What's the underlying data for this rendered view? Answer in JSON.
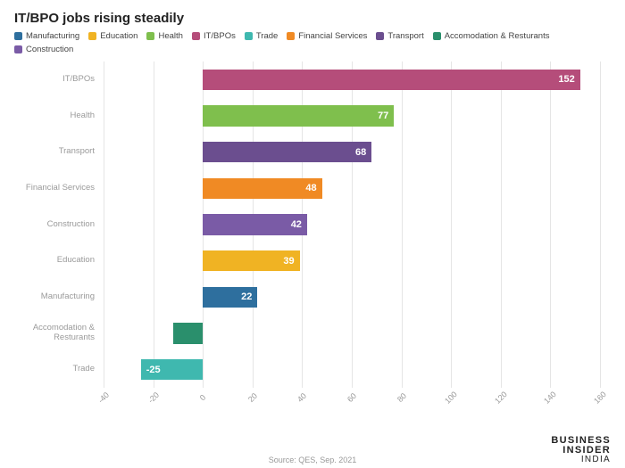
{
  "chart": {
    "type": "bar-horizontal",
    "title": "IT/BPO jobs rising steadily",
    "title_fontsize": 15,
    "title_color": "#222222",
    "background_color": "#ffffff",
    "grid_color": "#e5e5e5",
    "ylabel_fontsize": 9.5,
    "ylabel_color": "#9a9a9a",
    "value_label_fontsize": 11,
    "value_label_color": "#ffffff",
    "x_axis": {
      "min": -40,
      "max": 160,
      "tick_step": 20,
      "tick_fontsize": 9,
      "tick_color": "#999999",
      "tick_rotation_deg": -45,
      "ticks": [
        "-40",
        "-20",
        "0",
        "20",
        "40",
        "60",
        "80",
        "100",
        "120",
        "140",
        "160"
      ]
    },
    "legend": {
      "fontsize": 9.5,
      "text_color": "#444444",
      "items": [
        {
          "label": "Manufacturing",
          "color": "#2e6f9e"
        },
        {
          "label": "Education",
          "color": "#f0b323"
        },
        {
          "label": "Health",
          "color": "#7fbf4d"
        },
        {
          "label": "IT/BPOs",
          "color": "#b54d7a"
        },
        {
          "label": "Trade",
          "color": "#3fb8af"
        },
        {
          "label": "Financial Services",
          "color": "#f08a24"
        },
        {
          "label": "Transport",
          "color": "#6b4e8f"
        },
        {
          "label": "Accomodation & Resturants",
          "color": "#2a8f6c"
        },
        {
          "label": "Construction",
          "color": "#7a5ba6"
        }
      ]
    },
    "rows": [
      {
        "label": "IT/BPOs",
        "value": 152,
        "show_value": "152",
        "color": "#b54d7a"
      },
      {
        "label": "Health",
        "value": 77,
        "show_value": "77",
        "color": "#7fbf4d"
      },
      {
        "label": "Transport",
        "value": 68,
        "show_value": "68",
        "color": "#6b4e8f"
      },
      {
        "label": "Financial Services",
        "value": 48,
        "show_value": "48",
        "color": "#f08a24"
      },
      {
        "label": "Construction",
        "value": 42,
        "show_value": "42",
        "color": "#7a5ba6"
      },
      {
        "label": "Education",
        "value": 39,
        "show_value": "39",
        "color": "#f0b323"
      },
      {
        "label": "Manufacturing",
        "value": 22,
        "show_value": "22",
        "color": "#2e6f9e"
      },
      {
        "label": "Accomodation & Resturants",
        "value": -12,
        "show_value": "",
        "color": "#2a8f6c"
      },
      {
        "label": "Trade",
        "value": -25,
        "show_value": "-25",
        "color": "#3fb8af"
      }
    ],
    "source": "Source: QES, Sep. 2021",
    "source_fontsize": 9,
    "source_color": "#999999",
    "brand": {
      "line1": "BUSINESS",
      "line2": "INSIDER",
      "sub": "INDIA"
    }
  }
}
